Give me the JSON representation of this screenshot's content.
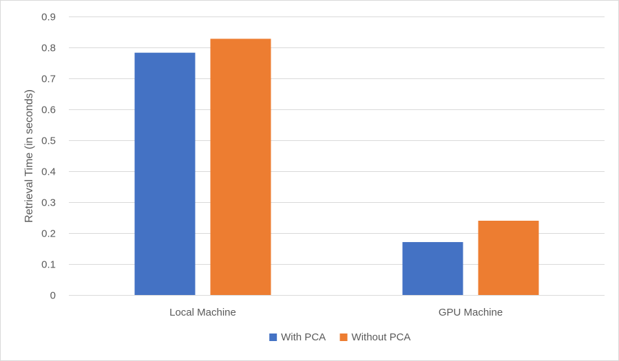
{
  "chart_data": {
    "type": "bar",
    "title": "",
    "xlabel": "",
    "ylabel": "Retrieval Time (in seconds)",
    "categories": [
      "Local Machine",
      "GPU Machine"
    ],
    "series": [
      {
        "name": "With PCA",
        "color": "#4472C4",
        "values": [
          0.783,
          0.171
        ]
      },
      {
        "name": "Without PCA",
        "color": "#ED7D31",
        "values": [
          0.828,
          0.24
        ]
      }
    ],
    "ylim": [
      0,
      0.9
    ],
    "yticks": [
      "0",
      "0.1",
      "0.2",
      "0.3",
      "0.4",
      "0.5",
      "0.6",
      "0.7",
      "0.8",
      "0.9"
    ],
    "grid": true,
    "gridline_color": "#d9d9d9",
    "legend_position": "bottom-center"
  }
}
